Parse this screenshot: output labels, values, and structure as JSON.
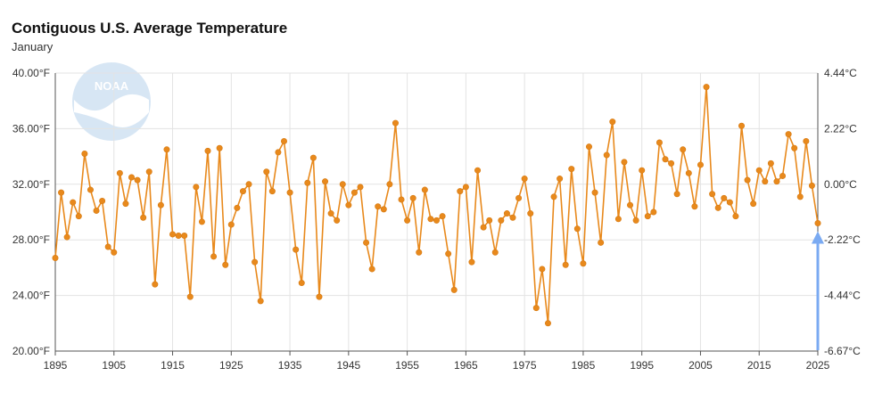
{
  "chart_data": {
    "type": "line",
    "title": "Contiguous U.S. Average Temperature",
    "subtitle": "January",
    "xlim": [
      1895,
      2025
    ],
    "ylim": [
      20,
      40
    ],
    "x_ticks": [
      "1895",
      "1905",
      "1915",
      "1925",
      "1935",
      "1945",
      "1955",
      "1965",
      "1975",
      "1985",
      "1995",
      "2005",
      "2015",
      "2025"
    ],
    "y_left_ticks": [
      {
        "value": 20,
        "label": "20.00°F"
      },
      {
        "value": 24,
        "label": "24.00°F"
      },
      {
        "value": 28,
        "label": "28.00°F"
      },
      {
        "value": 32,
        "label": "32.00°F"
      },
      {
        "value": 36,
        "label": "36.00°F"
      },
      {
        "value": 40,
        "label": "40.00°F"
      }
    ],
    "y_right_ticks": [
      {
        "value": 20,
        "label": "-6.67°C"
      },
      {
        "value": 24,
        "label": "-4.44°C"
      },
      {
        "value": 28,
        "label": "-2.22°C"
      },
      {
        "value": 32,
        "label": "0.00°C"
      },
      {
        "value": 36,
        "label": "2.22°C"
      },
      {
        "value": 40,
        "label": "4.44°C"
      }
    ],
    "grid": true,
    "line_color": "#e8891c",
    "marker_color": "#e8891c",
    "arrow_color": "#7aaaf2",
    "logo_text": "NOAA",
    "highlight_year": 2025,
    "series": [
      {
        "x": [
          1895,
          1896,
          1897,
          1898,
          1899,
          1900,
          1901,
          1902,
          1903,
          1904,
          1905,
          1906,
          1907,
          1908,
          1909,
          1910,
          1911,
          1912,
          1913,
          1914,
          1915,
          1916,
          1917,
          1918,
          1919,
          1920,
          1921,
          1922,
          1923,
          1924,
          1925,
          1926,
          1927,
          1928,
          1929,
          1930,
          1931,
          1932,
          1933,
          1934,
          1935,
          1936,
          1937,
          1938,
          1939,
          1940,
          1941,
          1942,
          1943,
          1944,
          1945,
          1946,
          1947,
          1948,
          1949,
          1950,
          1951,
          1952,
          1953,
          1954,
          1955,
          1956,
          1957,
          1958,
          1959,
          1960,
          1961,
          1962,
          1963,
          1964,
          1965,
          1966,
          1967,
          1968,
          1969,
          1970,
          1971,
          1972,
          1973,
          1974,
          1975,
          1976,
          1977,
          1978,
          1979,
          1980,
          1981,
          1982,
          1983,
          1984,
          1985,
          1986,
          1987,
          1988,
          1989,
          1990,
          1991,
          1992,
          1993,
          1994,
          1995,
          1996,
          1997,
          1998,
          1999,
          2000,
          2001,
          2002,
          2003,
          2004,
          2005,
          2006,
          2007,
          2008,
          2009,
          2010,
          2011,
          2012,
          2013,
          2014,
          2015,
          2016,
          2017,
          2018,
          2019,
          2020,
          2021,
          2022,
          2023,
          2024,
          2025
        ],
        "y": [
          26.7,
          31.4,
          28.2,
          30.7,
          29.7,
          34.2,
          31.6,
          30.1,
          30.8,
          27.5,
          27.1,
          32.8,
          30.6,
          32.5,
          32.3,
          29.6,
          32.9,
          24.8,
          30.5,
          34.5,
          28.4,
          28.3,
          28.3,
          23.9,
          31.8,
          29.3,
          34.4,
          26.8,
          34.6,
          26.2,
          29.1,
          30.3,
          31.5,
          32.0,
          26.4,
          23.6,
          32.9,
          31.5,
          34.3,
          35.1,
          31.4,
          27.3,
          24.9,
          32.1,
          33.9,
          23.9,
          32.2,
          29.9,
          29.4,
          32.0,
          30.5,
          31.4,
          31.8,
          27.8,
          25.9,
          30.4,
          30.2,
          32.0,
          36.4,
          30.9,
          29.4,
          31.0,
          27.1,
          31.6,
          29.5,
          29.4,
          29.7,
          27.0,
          24.4,
          31.5,
          31.8,
          26.4,
          33.0,
          28.9,
          29.4,
          27.1,
          29.4,
          29.9,
          29.6,
          31.0,
          32.4,
          29.9,
          23.1,
          25.9,
          22.0,
          31.1,
          32.4,
          26.2,
          33.1,
          28.8,
          26.3,
          34.7,
          31.4,
          27.8,
          34.1,
          36.5,
          29.5,
          33.6,
          30.5,
          29.4,
          33.0,
          29.7,
          30.0,
          35.0,
          33.8,
          33.5,
          31.3,
          34.5,
          32.8,
          30.4,
          33.4,
          39.0,
          31.3,
          30.3,
          31.0,
          30.7,
          29.7,
          36.2,
          32.3,
          30.6,
          33.0,
          32.2,
          33.5,
          32.2,
          32.6,
          35.6,
          34.6,
          31.1,
          35.1,
          31.9,
          29.2
        ]
      }
    ]
  }
}
